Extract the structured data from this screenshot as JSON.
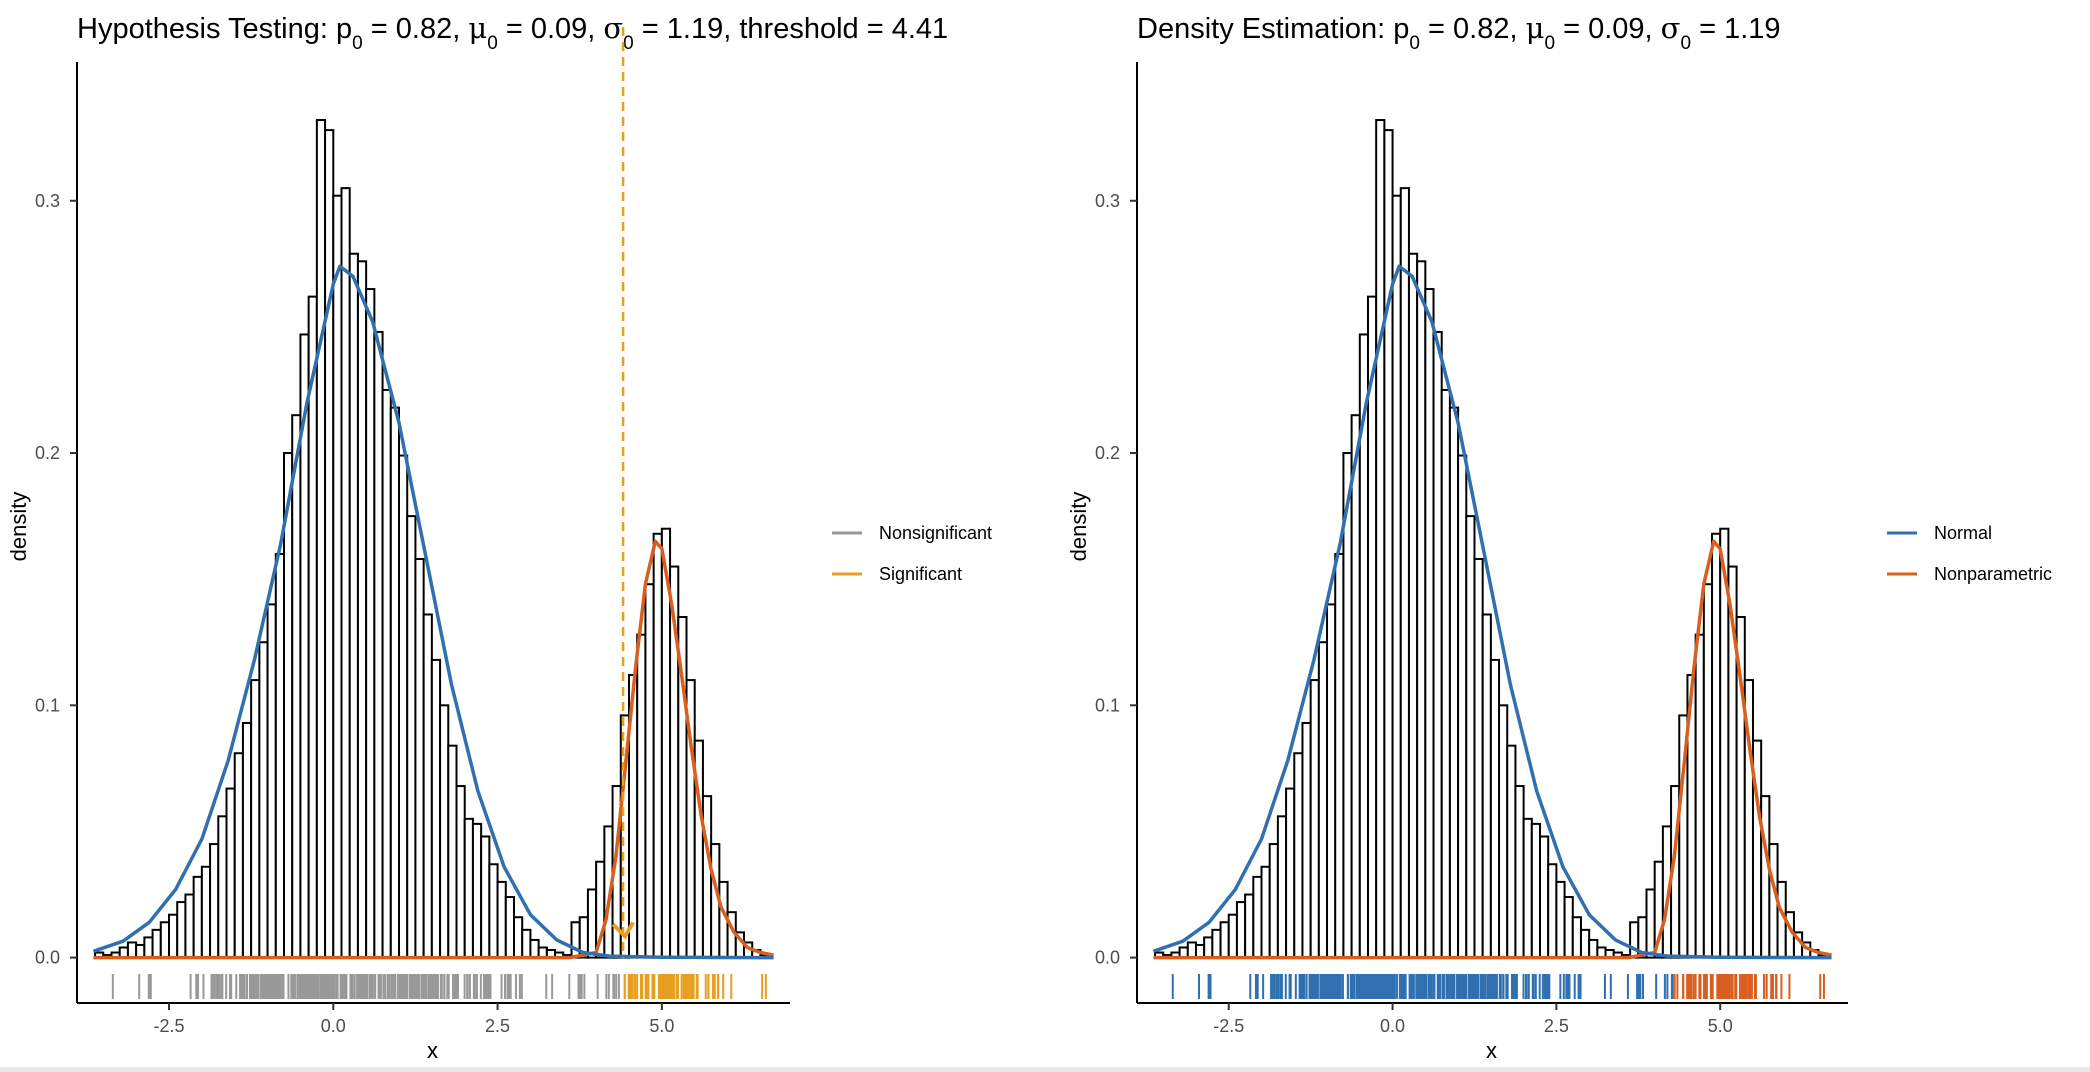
{
  "colors": {
    "normal": "#3070B0",
    "nonparametric": "#D95F20",
    "nonsignificant": "#999999",
    "significant": "#E69F20",
    "bar_edge": "#000000",
    "bar_fill": "#ffffff"
  },
  "chart_data": [
    {
      "id": "hypothesis",
      "type": "bar",
      "title_text": "Hypothesis Testing: p = 0.82, μ = 0.09, σ = 1.19, threshold = 4.41",
      "title": {
        "lead": "Hypothesis Testing: ",
        "p": "p",
        "p_sub": "0",
        "p_val": " = 0.82, ",
        "mu": "μ",
        "mu_sub": "0",
        "mu_val": " = 0.09, ",
        "sigma": "σ",
        "sigma_sub": "0",
        "sigma_val": " = 1.19",
        "tail": ", threshold = 4.41"
      },
      "xlabel": "x",
      "ylabel": "density",
      "xlim": [
        -3.9,
        6.95
      ],
      "ylim": [
        -0.018,
        0.355
      ],
      "xticks": [
        -2.5,
        0.0,
        2.5,
        5.0
      ],
      "xtick_labels": [
        "-2.5",
        "0.0",
        "2.5",
        "5.0"
      ],
      "yticks": [
        0.0,
        0.1,
        0.2,
        0.3
      ],
      "ytick_labels": [
        "0.0",
        "0.1",
        "0.2",
        "0.3"
      ],
      "grid": false,
      "legend_position": "right",
      "legend": [
        {
          "label": "Nonsignificant",
          "color": "#999999"
        },
        {
          "label": "Significant",
          "color": "#E69F20"
        }
      ],
      "threshold": 4.41,
      "rug": {
        "style": "threshold",
        "threshold": 4.41,
        "below_color": "#999999",
        "above_color": "#E69F20"
      }
    },
    {
      "id": "density",
      "type": "bar",
      "title_text": "Density Estimation: p = 0.82, μ = 0.09, σ = 1.19",
      "title": {
        "lead": "Density Estimation: ",
        "p": "p",
        "p_sub": "0",
        "p_val": " = 0.82, ",
        "mu": "μ",
        "mu_sub": "0",
        "mu_val": " = 0.09, ",
        "sigma": "σ",
        "sigma_sub": "0",
        "sigma_val": " = 1.19",
        "tail": ""
      },
      "xlabel": "x",
      "ylabel": "density",
      "xlim": [
        -3.9,
        6.95
      ],
      "ylim": [
        -0.018,
        0.355
      ],
      "xticks": [
        -2.5,
        0.0,
        2.5,
        5.0
      ],
      "xtick_labels": [
        "-2.5",
        "0.0",
        "2.5",
        "5.0"
      ],
      "yticks": [
        0.0,
        0.1,
        0.2,
        0.3
      ],
      "ytick_labels": [
        "0.0",
        "0.1",
        "0.2",
        "0.3"
      ],
      "grid": false,
      "legend_position": "right",
      "legend": [
        {
          "label": "Normal",
          "color": "#3070B0"
        },
        {
          "label": "Nonparametric",
          "color": "#D95F20"
        }
      ],
      "threshold": null,
      "rug": {
        "style": "cluster",
        "threshold": 4.3,
        "below_color": "#3070B0",
        "above_color": "#D95F20"
      }
    }
  ],
  "histogram": {
    "bin_width": 0.125,
    "bins": [
      {
        "x0": -3.625,
        "d": 0.002
      },
      {
        "x0": -3.5,
        "d": 0.001
      },
      {
        "x0": -3.375,
        "d": 0.002
      },
      {
        "x0": -3.25,
        "d": 0.004
      },
      {
        "x0": -3.125,
        "d": 0.006
      },
      {
        "x0": -3.0,
        "d": 0.005
      },
      {
        "x0": -2.875,
        "d": 0.008
      },
      {
        "x0": -2.75,
        "d": 0.011
      },
      {
        "x0": -2.625,
        "d": 0.014
      },
      {
        "x0": -2.5,
        "d": 0.017
      },
      {
        "x0": -2.375,
        "d": 0.022
      },
      {
        "x0": -2.25,
        "d": 0.025
      },
      {
        "x0": -2.125,
        "d": 0.032
      },
      {
        "x0": -2.0,
        "d": 0.036
      },
      {
        "x0": -1.875,
        "d": 0.045
      },
      {
        "x0": -1.75,
        "d": 0.056
      },
      {
        "x0": -1.625,
        "d": 0.067
      },
      {
        "x0": -1.5,
        "d": 0.081
      },
      {
        "x0": -1.375,
        "d": 0.093
      },
      {
        "x0": -1.25,
        "d": 0.11
      },
      {
        "x0": -1.125,
        "d": 0.125
      },
      {
        "x0": -1.0,
        "d": 0.14
      },
      {
        "x0": -0.875,
        "d": 0.16
      },
      {
        "x0": -0.75,
        "d": 0.2
      },
      {
        "x0": -0.625,
        "d": 0.215
      },
      {
        "x0": -0.5,
        "d": 0.247
      },
      {
        "x0": -0.375,
        "d": 0.262
      },
      {
        "x0": -0.25,
        "d": 0.332
      },
      {
        "x0": -0.125,
        "d": 0.328
      },
      {
        "x0": 0.0,
        "d": 0.302
      },
      {
        "x0": 0.125,
        "d": 0.305
      },
      {
        "x0": 0.25,
        "d": 0.279
      },
      {
        "x0": 0.375,
        "d": 0.276
      },
      {
        "x0": 0.5,
        "d": 0.265
      },
      {
        "x0": 0.625,
        "d": 0.248
      },
      {
        "x0": 0.75,
        "d": 0.225
      },
      {
        "x0": 0.875,
        "d": 0.218
      },
      {
        "x0": 1.0,
        "d": 0.199
      },
      {
        "x0": 1.125,
        "d": 0.175
      },
      {
        "x0": 1.25,
        "d": 0.158
      },
      {
        "x0": 1.375,
        "d": 0.136
      },
      {
        "x0": 1.5,
        "d": 0.118
      },
      {
        "x0": 1.625,
        "d": 0.1
      },
      {
        "x0": 1.75,
        "d": 0.084
      },
      {
        "x0": 1.875,
        "d": 0.068
      },
      {
        "x0": 2.0,
        "d": 0.055
      },
      {
        "x0": 2.125,
        "d": 0.053
      },
      {
        "x0": 2.25,
        "d": 0.048
      },
      {
        "x0": 2.375,
        "d": 0.037
      },
      {
        "x0": 2.5,
        "d": 0.03
      },
      {
        "x0": 2.625,
        "d": 0.024
      },
      {
        "x0": 2.75,
        "d": 0.016
      },
      {
        "x0": 2.875,
        "d": 0.011
      },
      {
        "x0": 3.0,
        "d": 0.007
      },
      {
        "x0": 3.125,
        "d": 0.004
      },
      {
        "x0": 3.25,
        "d": 0.003
      },
      {
        "x0": 3.375,
        "d": 0.002
      },
      {
        "x0": 3.5,
        "d": 0.001
      },
      {
        "x0": 3.625,
        "d": 0.014
      },
      {
        "x0": 3.75,
        "d": 0.016
      },
      {
        "x0": 3.875,
        "d": 0.027
      },
      {
        "x0": 4.0,
        "d": 0.038
      },
      {
        "x0": 4.125,
        "d": 0.052
      },
      {
        "x0": 4.25,
        "d": 0.068
      },
      {
        "x0": 4.375,
        "d": 0.096
      },
      {
        "x0": 4.5,
        "d": 0.112
      },
      {
        "x0": 4.625,
        "d": 0.128
      },
      {
        "x0": 4.75,
        "d": 0.148
      },
      {
        "x0": 4.875,
        "d": 0.168
      },
      {
        "x0": 5.0,
        "d": 0.17
      },
      {
        "x0": 5.125,
        "d": 0.155
      },
      {
        "x0": 5.25,
        "d": 0.135
      },
      {
        "x0": 5.375,
        "d": 0.11
      },
      {
        "x0": 5.5,
        "d": 0.086
      },
      {
        "x0": 5.625,
        "d": 0.064
      },
      {
        "x0": 5.75,
        "d": 0.045
      },
      {
        "x0": 5.875,
        "d": 0.03
      },
      {
        "x0": 6.0,
        "d": 0.018
      },
      {
        "x0": 6.125,
        "d": 0.01
      },
      {
        "x0": 6.25,
        "d": 0.006
      },
      {
        "x0": 6.375,
        "d": 0.003
      },
      {
        "x0": 6.5,
        "d": 0.001
      }
    ]
  },
  "normal_curve": {
    "peak_x": 0.09,
    "peak_density": 0.274,
    "points": [
      {
        "x": -3.65,
        "y": 0.0025
      },
      {
        "x": -3.2,
        "y": 0.0065
      },
      {
        "x": -2.8,
        "y": 0.014
      },
      {
        "x": -2.4,
        "y": 0.027
      },
      {
        "x": -2.0,
        "y": 0.047
      },
      {
        "x": -1.6,
        "y": 0.078
      },
      {
        "x": -1.2,
        "y": 0.118
      },
      {
        "x": -0.8,
        "y": 0.164
      },
      {
        "x": -0.4,
        "y": 0.22
      },
      {
        "x": 0.0,
        "y": 0.267
      },
      {
        "x": 0.1,
        "y": 0.274
      },
      {
        "x": 0.3,
        "y": 0.27
      },
      {
        "x": 0.6,
        "y": 0.252
      },
      {
        "x": 1.0,
        "y": 0.212
      },
      {
        "x": 1.4,
        "y": 0.16
      },
      {
        "x": 1.8,
        "y": 0.108
      },
      {
        "x": 2.2,
        "y": 0.066
      },
      {
        "x": 2.6,
        "y": 0.036
      },
      {
        "x": 3.0,
        "y": 0.017
      },
      {
        "x": 3.4,
        "y": 0.007
      },
      {
        "x": 3.8,
        "y": 0.002
      },
      {
        "x": 4.2,
        "y": 0.0006
      },
      {
        "x": 5.0,
        "y": 0.0001
      },
      {
        "x": 6.7,
        "y": 0.0
      }
    ]
  },
  "nonparametric_curve": {
    "points": [
      {
        "x": -3.65,
        "y": 0.0
      },
      {
        "x": 3.6,
        "y": 0.0
      },
      {
        "x": 4.0,
        "y": 0.002
      },
      {
        "x": 4.15,
        "y": 0.015
      },
      {
        "x": 4.3,
        "y": 0.04
      },
      {
        "x": 4.45,
        "y": 0.077
      },
      {
        "x": 4.6,
        "y": 0.115
      },
      {
        "x": 4.75,
        "y": 0.148
      },
      {
        "x": 4.9,
        "y": 0.165
      },
      {
        "x": 5.0,
        "y": 0.162
      },
      {
        "x": 5.15,
        "y": 0.14
      },
      {
        "x": 5.3,
        "y": 0.112
      },
      {
        "x": 5.45,
        "y": 0.083
      },
      {
        "x": 5.6,
        "y": 0.056
      },
      {
        "x": 5.75,
        "y": 0.035
      },
      {
        "x": 5.9,
        "y": 0.02
      },
      {
        "x": 6.1,
        "y": 0.01
      },
      {
        "x": 6.3,
        "y": 0.004
      },
      {
        "x": 6.5,
        "y": 0.002
      },
      {
        "x": 6.7,
        "y": 0.001
      }
    ]
  }
}
